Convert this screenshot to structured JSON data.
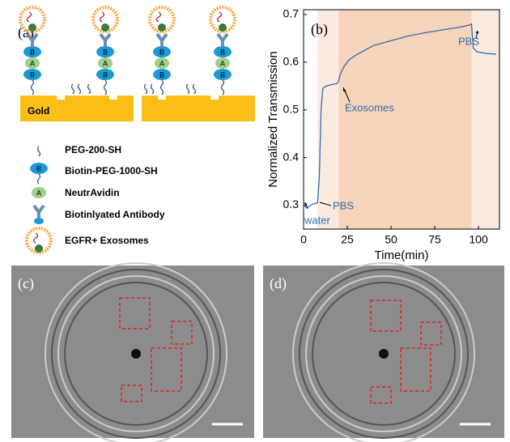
{
  "panel_labels": [
    "(a)",
    "(b)",
    "(c)",
    "(d)"
  ],
  "diagram": {
    "substrate": "Gold",
    "letters": [
      "B",
      "A"
    ],
    "legend": [
      "PEG-200-SH",
      "Biotin-PEG-1000-SH",
      "NeutrAvidin",
      "Biotinlyated Antibody",
      "EGFR+ Exosomes"
    ]
  },
  "chart_data": {
    "type": "line",
    "xlabel": "Time(min)",
    "ylabel": "Normalized Transmission",
    "xlim": [
      0,
      112
    ],
    "xticks": [
      0,
      25,
      50,
      75,
      100
    ],
    "ylim": [
      0.25,
      0.71
    ],
    "yticks": [
      0.3,
      0.4,
      0.5,
      0.6,
      0.7
    ],
    "shaded_regions": [
      {
        "start": 8,
        "end": 20,
        "color": "#fbeadf"
      },
      {
        "start": 20,
        "end": 96,
        "color": "#f6d3bb"
      },
      {
        "start": 96,
        "end": 112,
        "color": "#fbeadf"
      }
    ],
    "annotations": [
      "water",
      "PBS",
      "Exosomes",
      "PBS"
    ],
    "series": [
      {
        "color": "#2f6fb0",
        "x": [
          0,
          2,
          5,
          8,
          9,
          10,
          11,
          13,
          16,
          19,
          20,
          21,
          23,
          26,
          30,
          35,
          40,
          50,
          60,
          70,
          80,
          90,
          95,
          96,
          97,
          99,
          105,
          110
        ],
        "values": [
          0.3,
          0.295,
          0.302,
          0.305,
          0.36,
          0.5,
          0.545,
          0.55,
          0.553,
          0.555,
          0.56,
          0.575,
          0.59,
          0.605,
          0.615,
          0.625,
          0.635,
          0.645,
          0.655,
          0.662,
          0.668,
          0.674,
          0.678,
          0.68,
          0.63,
          0.622,
          0.618,
          0.617
        ]
      }
    ]
  }
}
